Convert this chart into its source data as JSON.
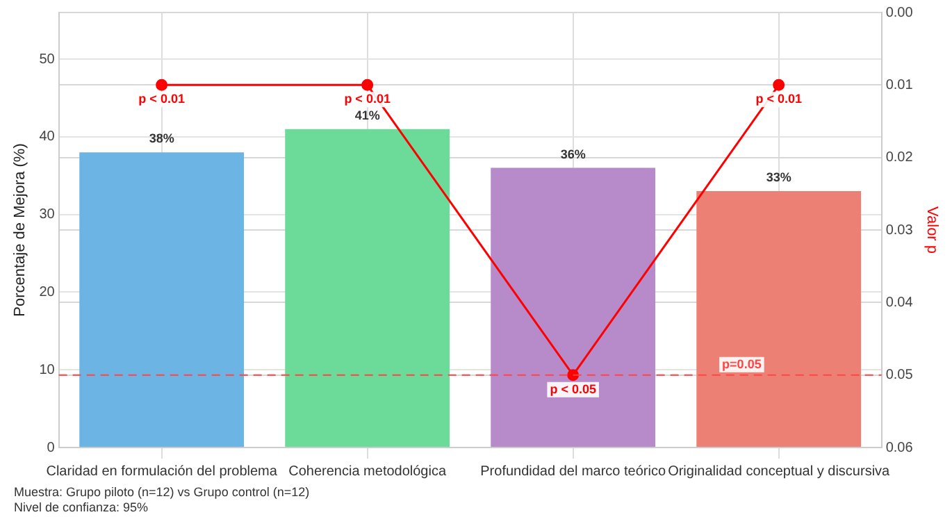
{
  "chart_data": {
    "type": "bar",
    "ylabel": "Porcentaje de Mejora (%)",
    "y2label": "Valor p",
    "categories": [
      "Claridad en formulación del problema",
      "Coherencia metodológica",
      "Profundidad del marco teórico",
      "Originalidad conceptual y discursiva"
    ],
    "series": [
      {
        "colors": [
          "#6cb4e4",
          "#6cdb9a",
          "#b78ac9",
          "#ed8074"
        ],
        "values": [
          38,
          41,
          36,
          33
        ],
        "value_labels": [
          "38%",
          "41%",
          "36%",
          "33%"
        ]
      },
      {
        "type": "line",
        "axis": "y2",
        "color": "#ff0000",
        "values": [
          0.01,
          0.01,
          0.05,
          0.01
        ],
        "value_labels": [
          "p < 0.01",
          "p < 0.01",
          "p < 0.05",
          "p < 0.01"
        ],
        "marker": "circle",
        "line_style": "solid"
      }
    ],
    "ylim": [
      0,
      56
    ],
    "yticks": [
      0,
      10,
      20,
      30,
      40,
      50
    ],
    "y2lim": [
      0.06,
      0
    ],
    "y2ticks": [
      {
        "value": 0,
        "label": "0.00"
      },
      {
        "value": 0.01,
        "label": "0.01"
      },
      {
        "value": 0.02,
        "label": "0.02"
      },
      {
        "value": 0.03,
        "label": "0.03"
      },
      {
        "value": 0.04,
        "label": "0.04"
      },
      {
        "value": 0.05,
        "label": "0.05"
      },
      {
        "value": 0.06,
        "label": "0.06"
      }
    ],
    "ref_lines": [
      {
        "axis": "y2",
        "value": 0.05,
        "label": "p=0.05",
        "color": "#ff4444",
        "line_style": "dashed"
      }
    ],
    "grid": true,
    "legend": false,
    "annotations": [
      "Muestra: Grupo piloto (n=12) vs Grupo control (n=12)",
      "Nivel de confianza: 95%"
    ]
  }
}
